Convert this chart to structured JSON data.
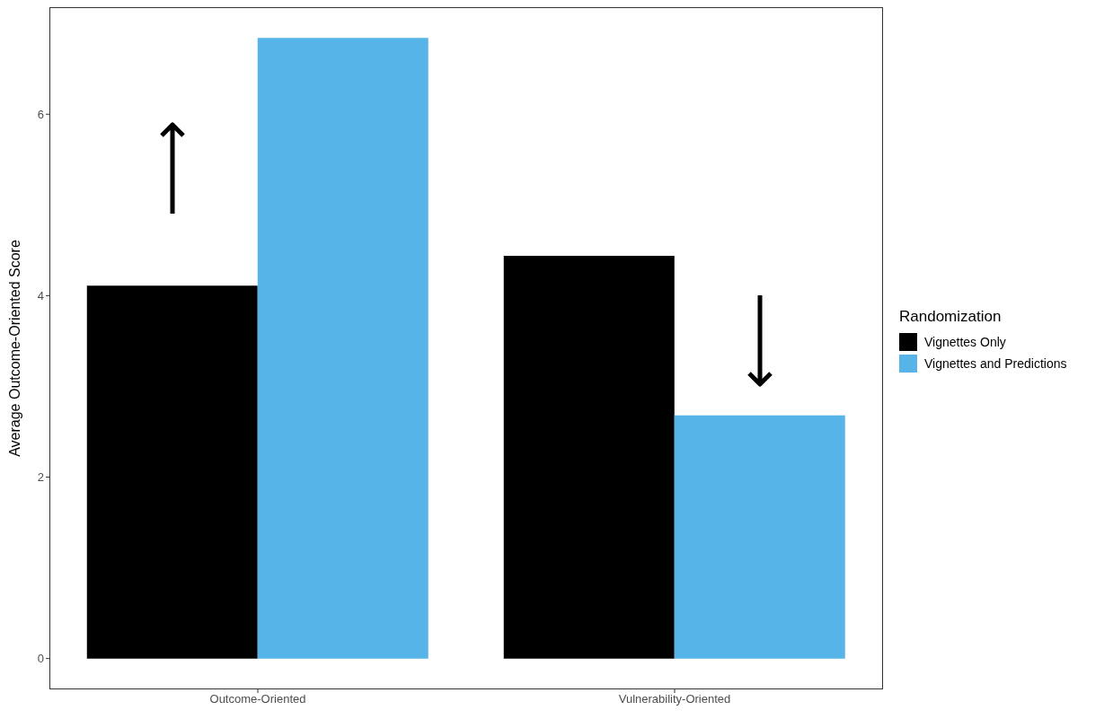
{
  "chart_data": {
    "type": "bar",
    "ylabel": "Average Outcome-Oriented Score",
    "legend_title": "Randomization",
    "categories": [
      "Outcome-Oriented",
      "Vulnerability-Oriented"
    ],
    "series": [
      {
        "name": "Vignettes Only",
        "color": "#000000",
        "values": [
          4.11,
          4.44
        ]
      },
      {
        "name": "Vignettes and Predictions",
        "color": "#56b4e9",
        "values": [
          6.84,
          2.68
        ]
      }
    ],
    "ylim": [
      -0.34,
      7.18
    ],
    "yticks": [
      0,
      2,
      4,
      6
    ],
    "grid": false,
    "legend": "right"
  }
}
